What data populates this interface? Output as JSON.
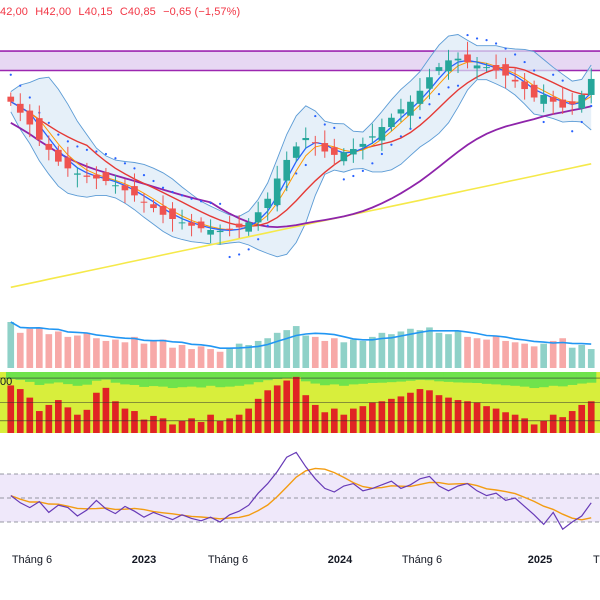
{
  "ohlc": {
    "open": "42,00",
    "high_label": "H",
    "high": "42,00",
    "low_label": "L",
    "low": "40,15",
    "close_label": "C",
    "close": "40,85",
    "change": "−0,65 (−1,57%)"
  },
  "stoch_level_label": "00",
  "colors": {
    "up": "#26a69a",
    "down": "#ef5350",
    "volume_up": "#8fd1c8",
    "volume_down": "#f7a9a8",
    "volume_ma": "#2196f3",
    "bb_band": "#5b9bd5",
    "bb_fill": "#dbe9f7",
    "ma_orange": "#ff9800",
    "ma_blue": "#2962ff",
    "ma_red": "#e53935",
    "ma_purple": "#8e24aa",
    "ma_yellow": "#f5e94a",
    "resistance_zone_fill": "#e7d8f3",
    "resistance_zone_line": "#9c27b0",
    "rsi": "#673ab7",
    "rsi_ma": "#f39c12",
    "rsi_band": "#efe8fa"
  },
  "chart_data": {
    "type": "candlestick",
    "x_labels": [
      "Tháng 6",
      "2023",
      "Tháng 6",
      "2024",
      "Tháng 6",
      "2025",
      "Th"
    ],
    "x_label_bold": [
      false,
      true,
      false,
      true,
      false,
      true,
      false
    ],
    "price_ylim": [
      14,
      46
    ],
    "resistance_zone": [
      41.2,
      43.5
    ],
    "stoch_level": 0.9,
    "rsi_levels": [
      70,
      50,
      30
    ],
    "rsi_ylim": [
      15,
      90
    ],
    "close": [
      37.5,
      36.2,
      34.8,
      33.0,
      31.8,
      30.4,
      29.6,
      29.0,
      28.6,
      28.4,
      28.1,
      27.6,
      27.0,
      26.4,
      25.6,
      24.9,
      24.1,
      23.6,
      23.2,
      22.8,
      22.5,
      22.3,
      22.2,
      22.3,
      22.6,
      23.2,
      24.4,
      26.0,
      28.4,
      30.6,
      32.2,
      33.2,
      32.6,
      31.6,
      31.2,
      31.5,
      31.9,
      32.5,
      33.4,
      34.5,
      35.6,
      36.6,
      37.5,
      38.8,
      40.4,
      41.6,
      42.4,
      42.6,
      42.2,
      41.8,
      41.6,
      41.2,
      40.6,
      39.9,
      39.0,
      38.0,
      38.3,
      37.5,
      36.8,
      37.2,
      38.3,
      40.2
    ],
    "volume": [
      68,
      52,
      58,
      60,
      50,
      54,
      46,
      48,
      52,
      44,
      40,
      42,
      38,
      46,
      36,
      40,
      42,
      30,
      34,
      28,
      32,
      28,
      24,
      30,
      36,
      34,
      40,
      44,
      52,
      56,
      62,
      48,
      46,
      40,
      44,
      38,
      42,
      40,
      46,
      52,
      50,
      54,
      58,
      56,
      60,
      52,
      50,
      54,
      46,
      44,
      42,
      48,
      40,
      38,
      36,
      32,
      36,
      40,
      44,
      30,
      34,
      28
    ],
    "rsi": [
      52,
      46,
      42,
      47,
      38,
      44,
      42,
      35,
      40,
      48,
      41,
      37,
      43,
      39,
      34,
      38,
      35,
      32,
      36,
      33,
      31,
      34,
      30,
      36,
      39,
      44,
      54,
      62,
      72,
      84,
      88,
      76,
      66,
      58,
      55,
      60,
      62,
      56,
      58,
      61,
      64,
      58,
      61,
      66,
      68,
      60,
      56,
      60,
      62,
      56,
      52,
      54,
      48,
      50,
      43,
      36,
      28,
      38,
      24,
      30,
      35,
      46
    ],
    "stoch_k": [
      0.78,
      0.72,
      0.58,
      0.36,
      0.46,
      0.54,
      0.42,
      0.3,
      0.38,
      0.66,
      0.74,
      0.52,
      0.4,
      0.36,
      0.22,
      0.28,
      0.24,
      0.14,
      0.2,
      0.24,
      0.18,
      0.3,
      0.2,
      0.24,
      0.3,
      0.4,
      0.56,
      0.7,
      0.78,
      0.86,
      0.92,
      0.62,
      0.46,
      0.34,
      0.4,
      0.3,
      0.4,
      0.44,
      0.5,
      0.52,
      0.56,
      0.6,
      0.66,
      0.72,
      0.7,
      0.62,
      0.58,
      0.54,
      0.52,
      0.5,
      0.44,
      0.4,
      0.34,
      0.3,
      0.24,
      0.14,
      0.2,
      0.3,
      0.26,
      0.36,
      0.46,
      0.52
    ]
  }
}
